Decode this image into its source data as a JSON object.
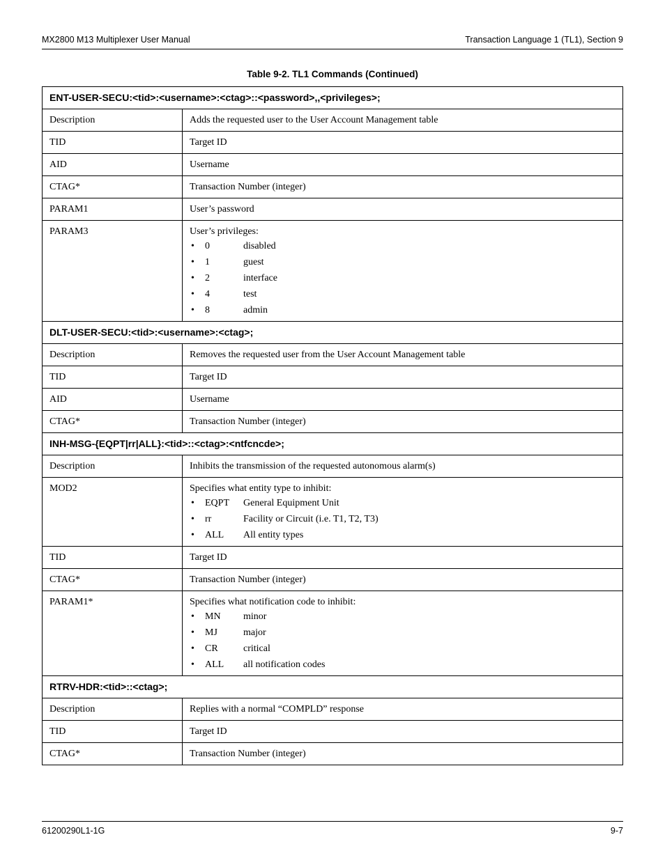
{
  "header": {
    "left": "MX2800 M13 Multiplexer User Manual",
    "right": "Transaction Language 1 (TL1), Section 9"
  },
  "caption": "Table 9-2.  TL1 Commands (Continued)",
  "sections": [
    {
      "title": "ENT-USER-SECU:<tid>:<username>:<ctag>::<password>,,<privileges>;",
      "rows": [
        {
          "label": "Description",
          "text": "Adds the requested user to the User Account Management table"
        },
        {
          "label": "TID",
          "text": "Target ID"
        },
        {
          "label": "AID",
          "text": "Username"
        },
        {
          "label": "CTAG*",
          "text": "Transaction Number (integer)"
        },
        {
          "label": "PARAM1",
          "text": "User’s password"
        },
        {
          "label": "PARAM3",
          "lead": "User’s privileges:",
          "items": [
            {
              "k": "0",
              "v": "disabled"
            },
            {
              "k": "1",
              "v": "guest"
            },
            {
              "k": "2",
              "v": "interface"
            },
            {
              "k": "4",
              "v": "test"
            },
            {
              "k": "8",
              "v": "admin"
            }
          ]
        }
      ]
    },
    {
      "title": "DLT-USER-SECU:<tid>:<username>:<ctag>;",
      "rows": [
        {
          "label": "Description",
          "text": "Removes the requested user from the User Account Management table"
        },
        {
          "label": "TID",
          "text": "Target ID"
        },
        {
          "label": "AID",
          "text": "Username"
        },
        {
          "label": "CTAG*",
          "text": "Transaction Number (integer)"
        }
      ]
    },
    {
      "title": "INH-MSG-{EQPT|rr|ALL}:<tid>::<ctag>:<ntfcncde>;",
      "rows": [
        {
          "label": "Description",
          "text": "Inhibits the transmission of the requested autonomous alarm(s)"
        },
        {
          "label": "MOD2",
          "lead": "Specifies what entity type to inhibit:",
          "items": [
            {
              "k": "EQPT",
              "v": "General Equipment Unit"
            },
            {
              "k": "rr",
              "v": "Facility or Circuit (i.e. T1, T2, T3)"
            },
            {
              "k": "ALL",
              "v": "All entity types"
            }
          ]
        },
        {
          "label": "TID",
          "text": "Target ID"
        },
        {
          "label": "CTAG*",
          "text": "Transaction Number (integer)"
        },
        {
          "label": "PARAM1*",
          "lead": "Specifies what notification code to inhibit:",
          "items": [
            {
              "k": "MN",
              "v": "minor"
            },
            {
              "k": "MJ",
              "v": "major"
            },
            {
              "k": "CR",
              "v": "critical"
            },
            {
              "k": "ALL",
              "v": "all notification codes"
            }
          ]
        }
      ]
    },
    {
      "title": "RTRV-HDR:<tid>::<ctag>;",
      "rows": [
        {
          "label": "Description",
          "text": "Replies with a normal “COMPLD” response"
        },
        {
          "label": "TID",
          "text": "Target ID"
        },
        {
          "label": "CTAG*",
          "text": "Transaction Number (integer)"
        }
      ]
    }
  ],
  "footer": {
    "left": "61200290L1-1G",
    "right": "9-7"
  }
}
